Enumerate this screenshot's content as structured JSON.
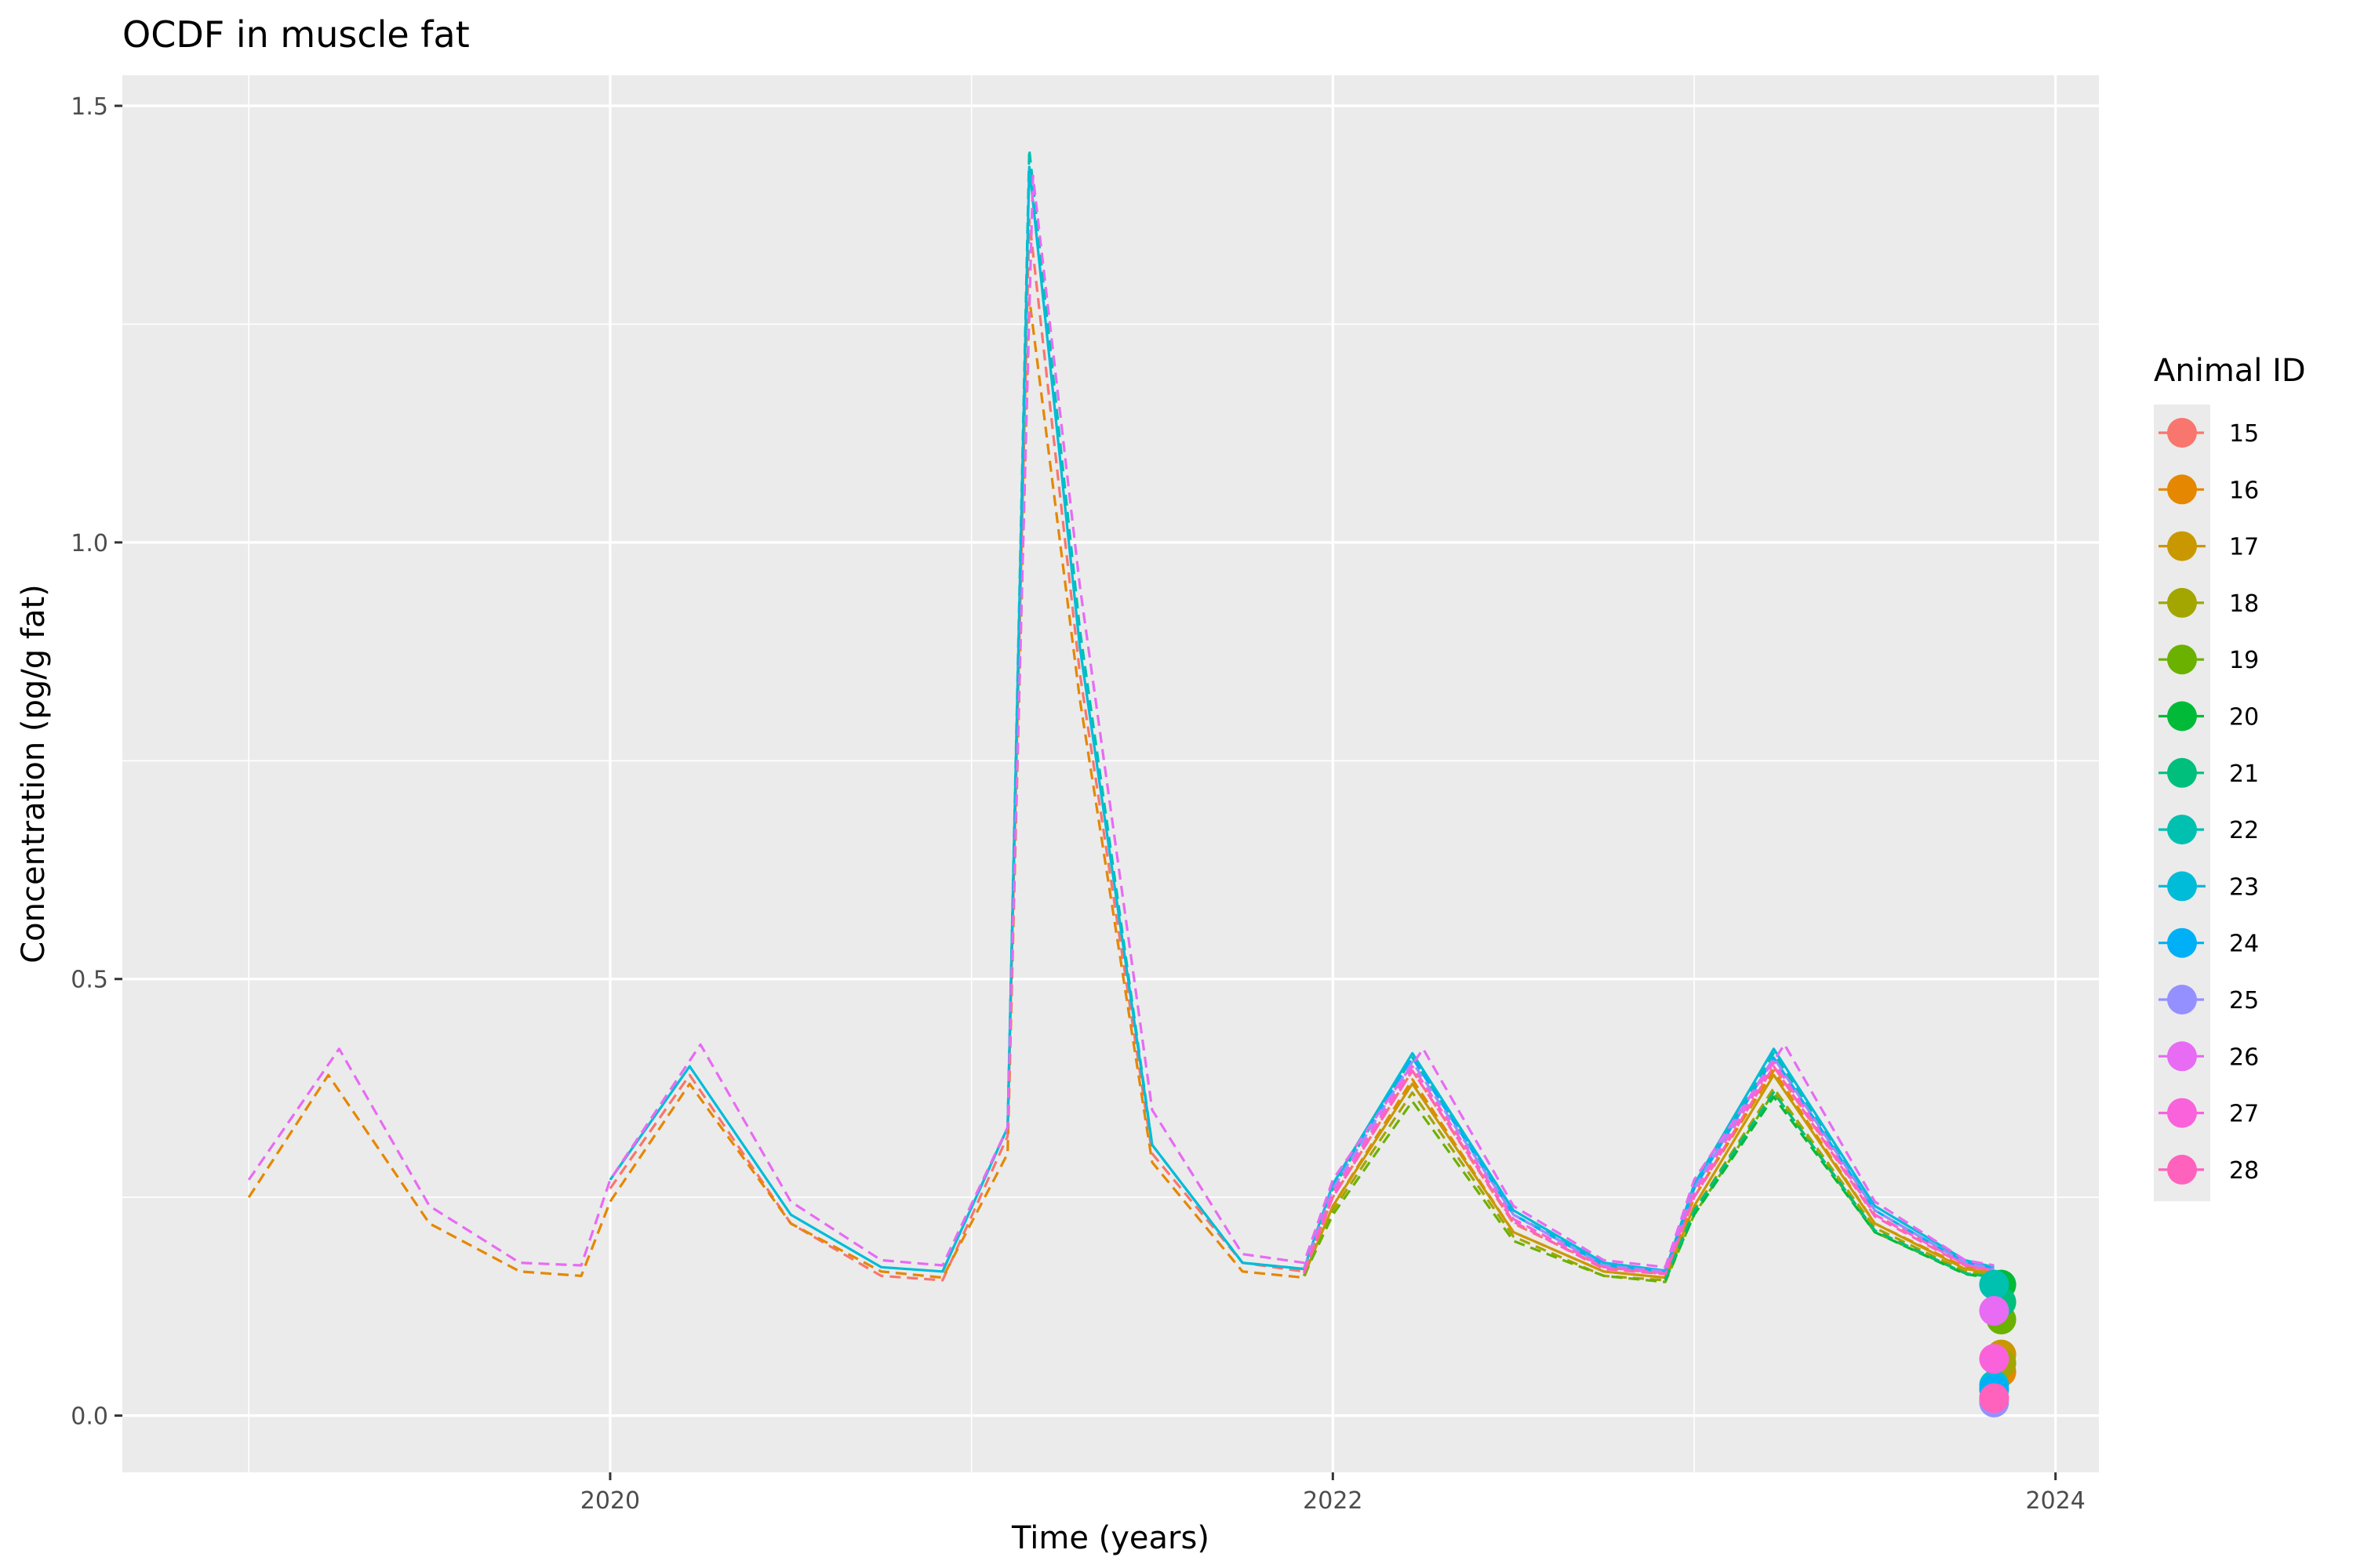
{
  "chart_data": {
    "type": "line",
    "title": "OCDF  in muscle fat",
    "xlabel": "Time (years)",
    "ylabel": "Concentration (pg/g fat)",
    "xlim": [
      2018.65,
      2024.12
    ],
    "ylim": [
      -0.065,
      1.535
    ],
    "x_ticks": [
      2020,
      2022,
      2024
    ],
    "x_tick_labels": [
      "2020",
      "2022",
      "2024"
    ],
    "y_ticks": [
      0.0,
      0.5,
      1.0,
      1.5
    ],
    "y_tick_labels": [
      "0.0",
      "0.5",
      "1.0",
      "1.5"
    ],
    "grid": true,
    "legend": {
      "title": "Animal ID",
      "position": "right"
    },
    "series": [
      {
        "name": "15",
        "color": "#F8766D",
        "dash": "dashed",
        "x": [
          2020.0,
          2020.22,
          2020.5,
          2020.75,
          2020.92,
          2021.1,
          2021.16,
          2021.3,
          2021.5,
          2021.75,
          2021.92,
          2022.0,
          2022.22,
          2022.5,
          2022.75,
          2022.92,
          2023.0,
          2023.22,
          2023.5,
          2023.75,
          2023.83
        ],
        "y": [
          0.26,
          0.39,
          0.22,
          0.16,
          0.155,
          0.32,
          1.37,
          0.85,
          0.3,
          0.175,
          0.165,
          0.25,
          0.395,
          0.22,
          0.17,
          0.162,
          0.25,
          0.4,
          0.23,
          0.175,
          0.168
        ],
        "point": 0.02
      },
      {
        "name": "16",
        "color": "#E58700",
        "dash": "dashed",
        "x": [
          2019.0,
          2019.22,
          2019.5,
          2019.75,
          2019.92,
          2020.0,
          2020.22,
          2020.5,
          2020.75,
          2020.92,
          2021.1,
          2021.16,
          2021.3,
          2021.5,
          2021.75,
          2021.92,
          2022.0,
          2022.22,
          2022.5,
          2022.75,
          2022.92,
          2023.0,
          2023.22,
          2023.5,
          2023.75,
          2023.85
        ],
        "y": [
          0.25,
          0.39,
          0.22,
          0.165,
          0.16,
          0.245,
          0.38,
          0.22,
          0.165,
          0.158,
          0.3,
          1.28,
          0.82,
          0.29,
          0.165,
          0.158,
          0.24,
          0.385,
          0.21,
          0.165,
          0.158,
          0.25,
          0.395,
          0.22,
          0.17,
          0.165
        ],
        "point": 0.05
      },
      {
        "name": "17",
        "color": "#C99800",
        "dash": "solid",
        "x": [
          2021.92,
          2022.0,
          2022.22,
          2022.5,
          2022.75,
          2022.92,
          2023.0,
          2023.22,
          2023.5,
          2023.75,
          2023.85
        ],
        "y": [
          0.16,
          0.24,
          0.38,
          0.21,
          0.165,
          0.158,
          0.24,
          0.39,
          0.22,
          0.168,
          0.162
        ],
        "point": 0.07
      },
      {
        "name": "18",
        "color": "#A3A500",
        "dash": "dashed",
        "x": [
          2021.92,
          2022.0,
          2022.22,
          2022.5,
          2022.75,
          2022.92,
          2023.0,
          2023.22,
          2023.5,
          2023.75,
          2023.85
        ],
        "y": [
          0.16,
          0.235,
          0.37,
          0.205,
          0.16,
          0.155,
          0.235,
          0.375,
          0.215,
          0.165,
          0.16
        ],
        "point": 0.06
      },
      {
        "name": "19",
        "color": "#6BB100",
        "dash": "dashed",
        "x": [
          2021.92,
          2022.0,
          2022.22,
          2022.5,
          2022.75,
          2022.92,
          2023.0,
          2023.22,
          2023.5,
          2023.75,
          2023.85
        ],
        "y": [
          0.16,
          0.23,
          0.36,
          0.2,
          0.16,
          0.153,
          0.23,
          0.37,
          0.21,
          0.163,
          0.158
        ],
        "point": 0.11
      },
      {
        "name": "20",
        "color": "#00BA38",
        "dash": "dashed",
        "x": [
          2022.92,
          2023.0,
          2023.22,
          2023.5,
          2023.75,
          2023.85
        ],
        "y": [
          0.155,
          0.23,
          0.365,
          0.21,
          0.162,
          0.156
        ],
        "point": 0.15
      },
      {
        "name": "21",
        "color": "#00BF7D",
        "dash": "dashed",
        "x": [
          2022.92,
          2023.0,
          2023.22,
          2023.5,
          2023.75,
          2023.85
        ],
        "y": [
          0.156,
          0.235,
          0.37,
          0.212,
          0.163,
          0.157
        ],
        "point": 0.13
      },
      {
        "name": "22",
        "color": "#00C0AF",
        "dash": "dashed",
        "x": [
          2020.92,
          2021.1,
          2021.16,
          2021.3,
          2021.5,
          2021.75,
          2021.92,
          2022.0,
          2022.22,
          2022.5,
          2022.75,
          2022.92,
          2023.0,
          2023.22,
          2023.5,
          2023.75,
          2023.83
        ],
        "y": [
          0.165,
          0.33,
          1.45,
          0.9,
          0.31,
          0.175,
          0.168,
          0.26,
          0.41,
          0.23,
          0.175,
          0.165,
          0.26,
          0.415,
          0.235,
          0.175,
          0.168
        ],
        "point": 0.15
      },
      {
        "name": "23",
        "color": "#00BCD8",
        "dash": "solid",
        "x": [
          2020.0,
          2020.22,
          2020.5,
          2020.75,
          2020.92,
          2021.1,
          2021.16,
          2021.3,
          2021.5,
          2021.75,
          2021.92,
          2022.0,
          2022.22,
          2022.5,
          2022.75,
          2022.92,
          2023.0,
          2023.22,
          2023.5,
          2023.75,
          2023.83
        ],
        "y": [
          0.27,
          0.4,
          0.23,
          0.17,
          0.165,
          0.33,
          1.43,
          0.88,
          0.31,
          0.175,
          0.168,
          0.265,
          0.415,
          0.235,
          0.175,
          0.166,
          0.265,
          0.42,
          0.24,
          0.178,
          0.17
        ],
        "point": 0.035
      },
      {
        "name": "24",
        "color": "#00B0F6",
        "dash": "dashed",
        "x": [
          2021.92,
          2022.0,
          2022.22,
          2022.5,
          2022.75,
          2022.92,
          2023.0,
          2023.22,
          2023.5,
          2023.75,
          2023.83
        ],
        "y": [
          0.168,
          0.26,
          0.41,
          0.23,
          0.172,
          0.165,
          0.26,
          0.41,
          0.235,
          0.175,
          0.168
        ],
        "point": 0.03
      },
      {
        "name": "25",
        "color": "#9590FF",
        "dash": "dashed",
        "x": [
          2021.92,
          2022.0,
          2022.22,
          2022.5,
          2022.75,
          2022.92,
          2023.0,
          2023.22,
          2023.5,
          2023.75,
          2023.83
        ],
        "y": [
          0.168,
          0.26,
          0.405,
          0.23,
          0.172,
          0.165,
          0.26,
          0.41,
          0.235,
          0.175,
          0.168
        ],
        "point": 0.015
      },
      {
        "name": "26",
        "color": "#E76BF3",
        "dash": "dashed",
        "x": [
          2019.0,
          2019.25,
          2019.5,
          2019.75,
          2019.92,
          2020.0,
          2020.25,
          2020.5,
          2020.75,
          2020.92,
          2021.1,
          2021.17,
          2021.3,
          2021.5,
          2021.75,
          2021.92,
          2022.0,
          2022.25,
          2022.5,
          2022.75,
          2022.92,
          2023.0,
          2023.25,
          2023.5,
          2023.75,
          2023.83
        ],
        "y": [
          0.27,
          0.42,
          0.24,
          0.175,
          0.172,
          0.27,
          0.425,
          0.245,
          0.178,
          0.172,
          0.33,
          1.42,
          0.95,
          0.35,
          0.185,
          0.175,
          0.27,
          0.42,
          0.24,
          0.178,
          0.17,
          0.27,
          0.425,
          0.245,
          0.178,
          0.172
        ],
        "point": 0.12
      },
      {
        "name": "27",
        "color": "#FA62DB",
        "dash": "dashed",
        "x": [
          2021.92,
          2022.0,
          2022.22,
          2022.5,
          2022.75,
          2022.92,
          2023.0,
          2023.22,
          2023.5,
          2023.75,
          2023.83
        ],
        "y": [
          0.165,
          0.255,
          0.4,
          0.225,
          0.17,
          0.163,
          0.255,
          0.405,
          0.23,
          0.173,
          0.166
        ],
        "point": 0.065
      },
      {
        "name": "28",
        "color": "#FF62BC",
        "dash": "dashed",
        "x": [
          2021.92,
          2022.0,
          2022.22,
          2022.5,
          2022.75,
          2022.92,
          2023.0,
          2023.22,
          2023.5,
          2023.75,
          2023.83
        ],
        "y": [
          0.163,
          0.25,
          0.395,
          0.222,
          0.168,
          0.162,
          0.25,
          0.4,
          0.228,
          0.172,
          0.165
        ],
        "point": 0.02
      }
    ]
  }
}
